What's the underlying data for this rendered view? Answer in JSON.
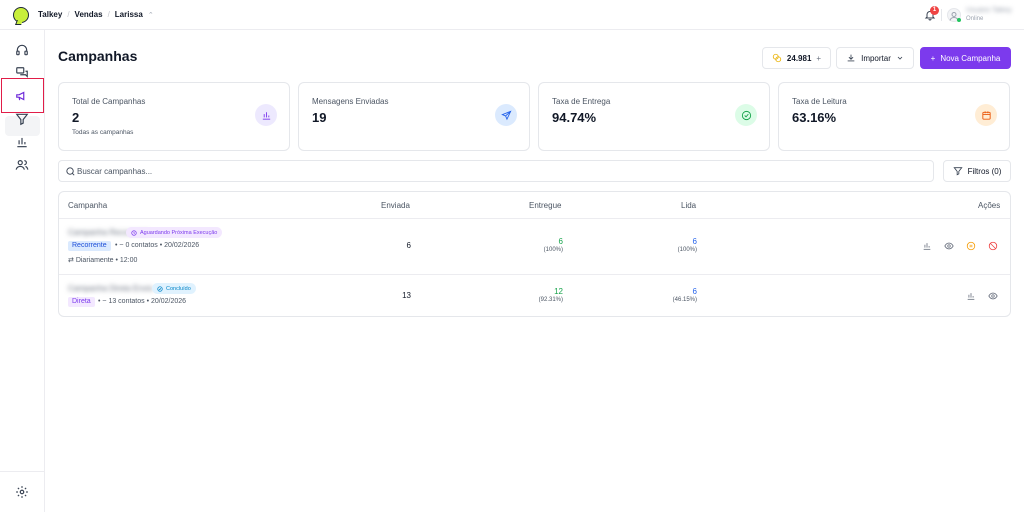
{
  "header": {
    "breadcrumbs": [
      "Talkey",
      "Vendas",
      "Larissa"
    ],
    "notifications_count": "1",
    "user_name": "Usuário Talkey",
    "user_status": "Online"
  },
  "sidebar": {
    "items": [
      "headset-icon",
      "chat-icon",
      "megaphone-icon",
      "filter-icon",
      "bar-chart-icon",
      "users-icon"
    ],
    "active": "megaphone-icon",
    "bottom": "settings-icon"
  },
  "page": {
    "title": "Campanhas",
    "credits": "24.981",
    "import_label": "Importar",
    "new_campaign_label": "Nova Campanha"
  },
  "stats": [
    {
      "label": "Total de Campanhas",
      "value": "2",
      "sub": "Todas as campanhas",
      "icon": "bar-chart-icon",
      "color": "#ede9fe"
    },
    {
      "label": "Mensagens Enviadas",
      "value": "19",
      "sub": "",
      "icon": "send-icon",
      "color": "#dbeafe"
    },
    {
      "label": "Taxa de Entrega",
      "value": "94.74%",
      "sub": "",
      "icon": "check-circle-icon",
      "color": "#dcfce7"
    },
    {
      "label": "Taxa de Leitura",
      "value": "63.16%",
      "sub": "",
      "icon": "calendar-icon",
      "color": "#ffedd5"
    }
  ],
  "search": {
    "placeholder": "Buscar campanhas...",
    "filter_label": "Filtros (0)"
  },
  "table": {
    "headers": {
      "campaign": "Campanha",
      "sent": "Enviada",
      "delivered": "Entregue",
      "read": "Lida",
      "actions": "Ações"
    },
    "rows": [
      {
        "name": "Campanha Recorrente",
        "status": "Aguardando Próxima Execução",
        "type": "Recorrente",
        "contacts": "~ 0 contatos",
        "date": "20/02/2026",
        "schedule": "Diariamente • 12:00",
        "sent": "6",
        "delivered": "6",
        "delivered_pct": "(100%)",
        "read": "6",
        "read_pct": "(100%)"
      },
      {
        "name": "Campanha Direta Envio",
        "status": "Concluído",
        "type": "Direta",
        "contacts": "~ 13 contatos",
        "date": "20/02/2026",
        "schedule": "",
        "sent": "13",
        "delivered": "12",
        "delivered_pct": "(92.31%)",
        "read": "6",
        "read_pct": "(46.15%)"
      }
    ]
  }
}
